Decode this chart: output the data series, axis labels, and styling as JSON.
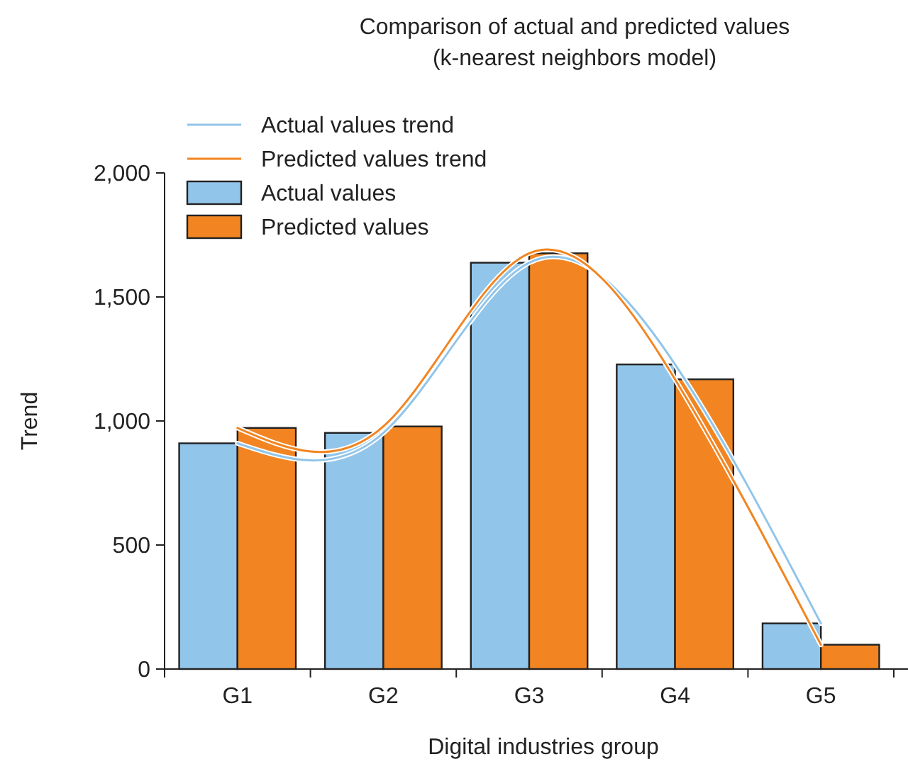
{
  "chart_data": {
    "type": "bar",
    "title": "Comparison of actual and predicted values",
    "subtitle": "(k-nearest neighbors model)",
    "xlabel": "Digital industries group",
    "ylabel": "Trend",
    "categories": [
      "G1",
      "G2",
      "G3",
      "G4",
      "G5"
    ],
    "series": [
      {
        "name": "Actual values trend",
        "type": "line",
        "color": "#92c5ea",
        "values": [
          910,
          952,
          1638,
          1228,
          184
        ]
      },
      {
        "name": "Predicted values trend",
        "type": "line",
        "color": "#f28522",
        "values": [
          972,
          978,
          1676,
          1168,
          98
        ]
      },
      {
        "name": "Actual values",
        "color": "#92c5ea",
        "values": [
          910,
          952,
          1638,
          1228,
          184
        ]
      },
      {
        "name": "Predicted values",
        "color": "#f28522",
        "values": [
          972,
          978,
          1676,
          1168,
          98
        ]
      }
    ],
    "ylim": [
      0,
      2000
    ],
    "yticks": [
      {
        "value": 0,
        "label": "0"
      },
      {
        "value": 500,
        "label": "500"
      },
      {
        "value": 1000,
        "label": "1,000"
      },
      {
        "value": 1500,
        "label": "1,500"
      },
      {
        "value": 2000,
        "label": "2,000"
      }
    ],
    "grid": false,
    "legend": "top left",
    "marker": "none"
  }
}
